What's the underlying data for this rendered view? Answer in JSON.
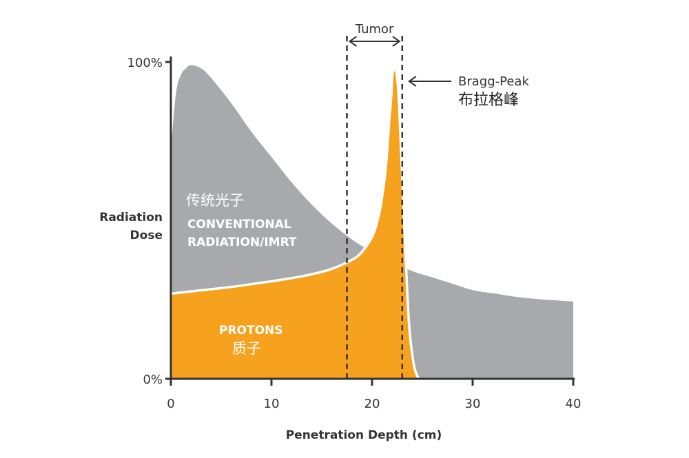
{
  "chart_data": {
    "type": "area",
    "xlabel": "Penetration Depth (cm)",
    "ylabel_lines": [
      "Radiation",
      "Dose"
    ],
    "xlim": [
      0,
      40
    ],
    "ylim": [
      0,
      100
    ],
    "x_ticks": [
      0,
      10,
      20,
      30,
      40
    ],
    "x_tick_labels": [
      "0",
      "10",
      "20",
      "30",
      "40"
    ],
    "y_ticks": [
      0,
      100
    ],
    "y_tick_labels": [
      "0%",
      "100%"
    ],
    "grid": false,
    "colors": {
      "conventional": "#a7a9ac",
      "protons": "#f6a21e",
      "axis": "#333333",
      "text": "#333333"
    },
    "series": [
      {
        "name": "CONVENTIONAL RADIATION/IMRT",
        "name_cn": "传统光子",
        "x": [
          0,
          0.5,
          1,
          1.5,
          2,
          3,
          4,
          6,
          8,
          10,
          12,
          14,
          16,
          18,
          20,
          22,
          24,
          26,
          28,
          30,
          32,
          34,
          36,
          38,
          40
        ],
        "y": [
          72,
          90,
          96,
          98,
          99,
          98,
          95,
          87,
          78,
          70,
          62,
          55,
          49,
          44,
          40,
          37,
          34,
          32,
          30,
          28,
          27,
          26,
          25.3,
          24.8,
          24.4
        ]
      },
      {
        "name": "PROTONS",
        "name_cn": "质子",
        "x": [
          0,
          2,
          4,
          6,
          8,
          10,
          12,
          14,
          16,
          18,
          19,
          20,
          20.5,
          21,
          21.5,
          21.8,
          22,
          22.2,
          22.5,
          23,
          23.5,
          24,
          24.5
        ],
        "y": [
          26.5,
          27.2,
          27.9,
          28.6,
          29.5,
          30.4,
          31.4,
          32.6,
          34.3,
          37.1,
          39.5,
          44,
          48,
          55,
          67,
          80,
          88,
          97,
          90,
          55,
          20,
          5,
          0
        ]
      }
    ],
    "annotations": {
      "tumor_label": "Tumor",
      "tumor_range": [
        17.5,
        23
      ],
      "bragg_label": "Bragg-Peak",
      "bragg_label_cn": "布拉格峰",
      "bragg_x": 22.2,
      "bragg_y": 97
    }
  }
}
